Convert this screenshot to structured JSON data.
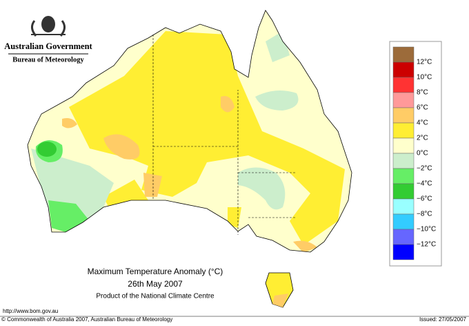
{
  "header": {
    "agency": "Australian Government",
    "bureau": "Bureau of Meteorology"
  },
  "caption": {
    "title": "Maximum Temperature Anomaly (°C)",
    "date": "26th May 2007",
    "product": "Product of the National Climate Centre"
  },
  "legend": {
    "colors": [
      "#9c6b3a",
      "#cc0000",
      "#ff3333",
      "#ff9999",
      "#ffcc66",
      "#ffee33",
      "#ffffcc",
      "#cceecc",
      "#66ee66",
      "#33cc33",
      "#99ffff",
      "#33ccff",
      "#6666ff",
      "#0000ff"
    ],
    "labels": [
      "12°C",
      "10°C",
      "8°C",
      "6°C",
      "4°C",
      "2°C",
      "0°C",
      "−2°C",
      "−4°C",
      "−6°C",
      "−8°C",
      "−10°C",
      "−12°C"
    ]
  },
  "footer": {
    "url": "http://www.bom.gov.au",
    "copyright": "© Commonwealth of Australia 2007, Australian Bureau of Meteorology",
    "issued": "Issued: 27/05/2007"
  }
}
